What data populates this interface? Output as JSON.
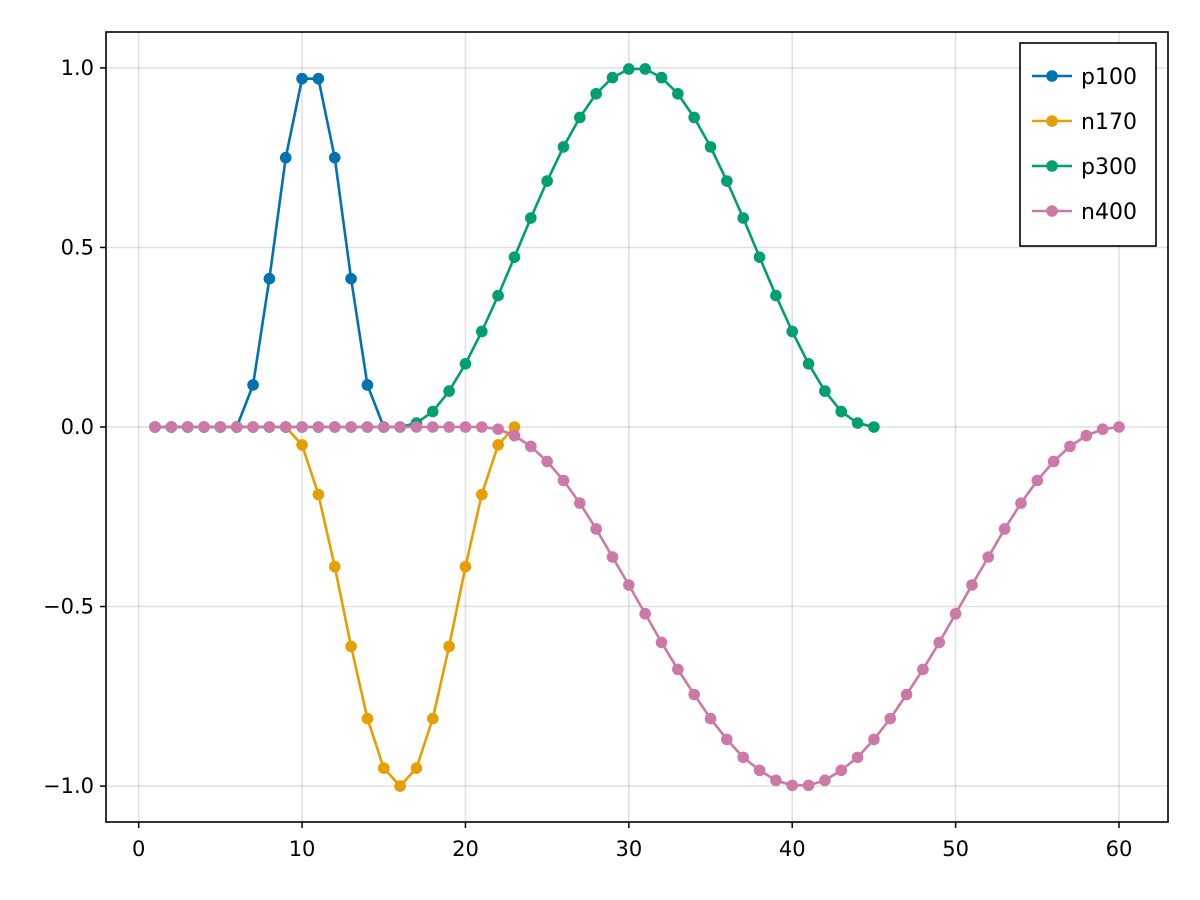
{
  "chart_data": {
    "type": "line",
    "title": "",
    "xlabel": "",
    "ylabel": "",
    "xlim": [
      -2,
      63
    ],
    "ylim": [
      -1.1,
      1.1
    ],
    "grid": true,
    "legend_position": "top-right",
    "xticks": [
      0,
      10,
      20,
      30,
      40,
      50,
      60
    ],
    "xtick_labels": [
      "0",
      "10",
      "20",
      "30",
      "40",
      "50",
      "60"
    ],
    "yticks": [
      1.0,
      0.5,
      0.0,
      -0.5,
      -1.0
    ],
    "ytick_labels": [
      "1.0",
      "0.5",
      "0.0",
      "−0.5",
      "−1.0"
    ],
    "series": [
      {
        "name": "p100",
        "color": "#0072b2",
        "x": [
          1,
          2,
          3,
          4,
          5,
          6,
          7,
          8,
          9,
          10,
          11,
          12,
          13,
          14,
          15
        ],
        "y": [
          0,
          0,
          0,
          0,
          0,
          0,
          0.117,
          0.413,
          0.75,
          0.97,
          0.97,
          0.75,
          0.413,
          0.117,
          0
        ]
      },
      {
        "name": "n170",
        "color": "#e69f00",
        "x": [
          1,
          2,
          3,
          4,
          5,
          6,
          7,
          8,
          9,
          10,
          11,
          12,
          13,
          14,
          15,
          16,
          17,
          18,
          19,
          20,
          21,
          22,
          23
        ],
        "y": [
          0,
          0,
          0,
          0,
          0,
          0,
          0,
          0,
          0,
          -0.05,
          -0.188,
          -0.389,
          -0.611,
          -0.812,
          -0.95,
          -1.0,
          -0.95,
          -0.812,
          -0.611,
          -0.389,
          -0.188,
          -0.05,
          0
        ]
      },
      {
        "name": "p300",
        "color": "#009e73",
        "x": [
          1,
          2,
          3,
          4,
          5,
          6,
          7,
          8,
          9,
          10,
          11,
          12,
          13,
          14,
          15,
          16,
          17,
          18,
          19,
          20,
          21,
          22,
          23,
          24,
          25,
          26,
          27,
          28,
          29,
          30,
          31,
          32,
          33,
          34,
          35,
          36,
          37,
          38,
          39,
          40,
          41,
          42,
          43,
          44,
          45
        ],
        "y": [
          0,
          0,
          0,
          0,
          0,
          0,
          0,
          0,
          0,
          0,
          0,
          0,
          0,
          0,
          0,
          0,
          0.011,
          0.043,
          0.1,
          0.176,
          0.266,
          0.366,
          0.473,
          0.582,
          0.685,
          0.78,
          0.862,
          0.928,
          0.973,
          0.997,
          0.997,
          0.973,
          0.928,
          0.862,
          0.78,
          0.685,
          0.582,
          0.473,
          0.366,
          0.266,
          0.176,
          0.1,
          0.043,
          0.011,
          0
        ]
      },
      {
        "name": "n400",
        "color": "#cc79a7",
        "x": [
          1,
          2,
          3,
          4,
          5,
          6,
          7,
          8,
          9,
          10,
          11,
          12,
          13,
          14,
          15,
          16,
          17,
          18,
          19,
          20,
          21,
          22,
          23,
          24,
          25,
          26,
          27,
          28,
          29,
          30,
          31,
          32,
          33,
          34,
          35,
          36,
          37,
          38,
          39,
          40,
          41,
          42,
          43,
          44,
          45,
          46,
          47,
          48,
          49,
          50,
          51,
          52,
          53,
          54,
          55,
          56,
          57,
          58,
          59,
          60
        ],
        "y": [
          0,
          0,
          0,
          0,
          0,
          0,
          0,
          0,
          0,
          0,
          0,
          0,
          0,
          0,
          0,
          0,
          0,
          0,
          0,
          0,
          0,
          -0.006,
          -0.024,
          -0.054,
          -0.096,
          -0.149,
          -0.212,
          -0.284,
          -0.362,
          -0.44,
          -0.52,
          -0.6,
          -0.675,
          -0.745,
          -0.812,
          -0.87,
          -0.92,
          -0.956,
          -0.984,
          -0.998,
          -0.998,
          -0.984,
          -0.956,
          -0.92,
          -0.87,
          -0.812,
          -0.745,
          -0.675,
          -0.6,
          -0.52,
          -0.44,
          -0.362,
          -0.284,
          -0.212,
          -0.149,
          -0.096,
          -0.054,
          -0.024,
          -0.006,
          0
        ]
      }
    ]
  }
}
